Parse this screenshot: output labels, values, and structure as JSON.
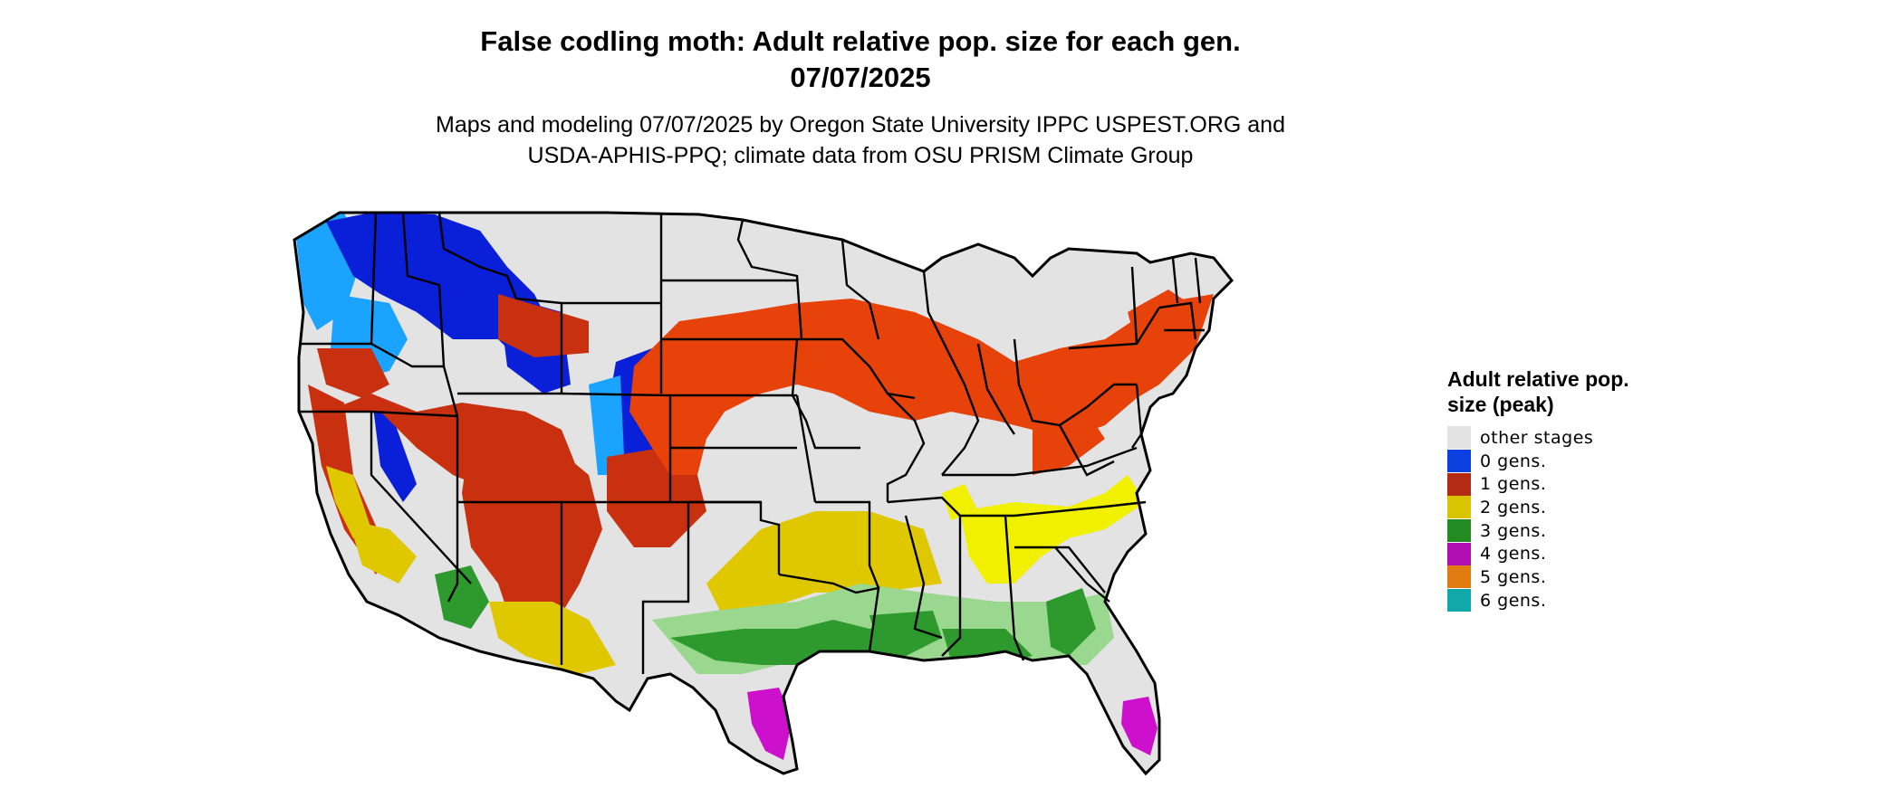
{
  "header": {
    "title_line1": "False codling moth: Adult relative pop. size for each gen.",
    "title_line2": "07/07/2025",
    "subtitle_line1": "Maps and modeling 07/07/2025 by Oregon State University IPPC USPEST.ORG and",
    "subtitle_line2": "USDA-APHIS-PPQ; climate data from OSU PRISM Climate Group"
  },
  "legend": {
    "title": "Adult relative pop. size (peak)",
    "items": [
      {
        "label": "other stages",
        "color": "#e3e3e3"
      },
      {
        "label": "0 gens.",
        "color": "#0a3fe0"
      },
      {
        "label": "1 gens.",
        "color": "#b52a12"
      },
      {
        "label": "2 gens.",
        "color": "#d9c400"
      },
      {
        "label": "3 gens.",
        "color": "#228b22"
      },
      {
        "label": "4 gens.",
        "color": "#b20db2"
      },
      {
        "label": "5 gens.",
        "color": "#e07b10"
      },
      {
        "label": "6 gens.",
        "color": "#10a8a8"
      }
    ]
  },
  "map": {
    "base_color": "#e3e3e3",
    "border_color": "#000000",
    "region_colors": {
      "blue_dark": "#0a1fd8",
      "blue_light": "#1aa3ff",
      "red": "#c93010",
      "red_orange": "#e6420a",
      "yellow": "#e0c800",
      "bright_yellow": "#f0f000",
      "green": "#2e9a2e",
      "light_green": "#9ad890",
      "magenta": "#cc10cc"
    }
  }
}
